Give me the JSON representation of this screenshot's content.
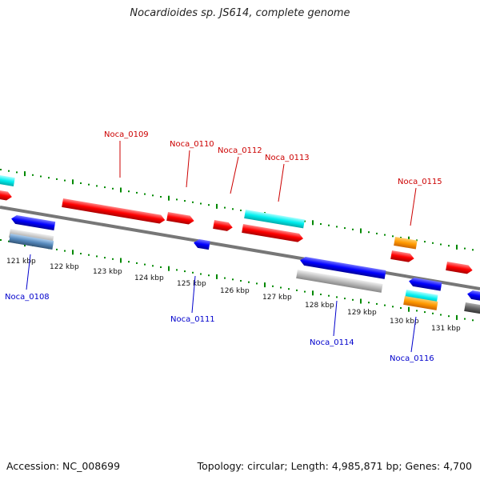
{
  "title": "Nocardioides sp. JS614, complete genome",
  "footer": {
    "accession": "Accession: NC_008699",
    "summary": "Topology: circular; Length: 4,985,871 bp; Genes: 4,700"
  },
  "colors": {
    "forward": "#ff0000",
    "reverse": "#0000ff",
    "cyan": "#00e5ee",
    "orange": "#ff9900",
    "gray": "#bbbbbb",
    "backbone": "#777777",
    "guide": "#008800"
  },
  "kbp_ticks": [
    "121 kbp",
    "122 kbp",
    "123 kbp",
    "124 kbp",
    "125 kbp",
    "126 kbp",
    "127 kbp",
    "128 kbp",
    "129 kbp",
    "130 kbp",
    "131 kbp"
  ],
  "genes_labeled_top": [
    "Noca_0109",
    "Noca_0110",
    "Noca_0112",
    "Noca_0113",
    "Noca_0115"
  ],
  "genes_labeled_bottom": [
    "Noca_0108",
    "Noca_0111",
    "Noca_0114",
    "Noca_0116"
  ]
}
